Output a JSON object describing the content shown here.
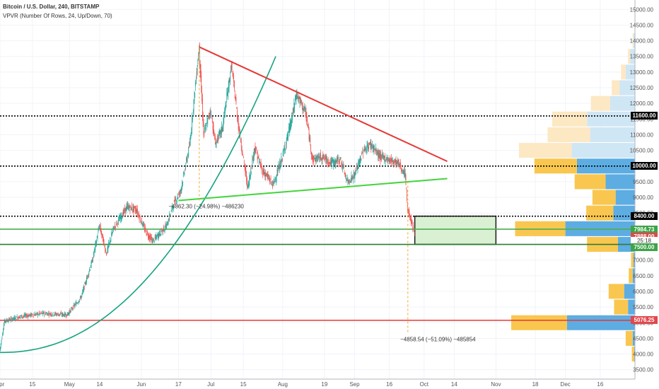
{
  "header": {
    "title": "Bitcoin / U.S. Dollar, 240, BITSTAMP",
    "indicator": "VPVR (Number Of Rows, 24, Up/Down, 70)"
  },
  "chart_data": {
    "type": "candlestick",
    "title": "Bitcoin / U.S. Dollar, 240, BITSTAMP",
    "indicator": "VPVR (Number Of Rows, 24, Up/Down, 70)",
    "ylim": [
      3200,
      15300
    ],
    "y_ticks": [
      3500,
      4000,
      4500,
      5000,
      5500,
      6000,
      6500,
      7000,
      7500,
      8000,
      8500,
      9000,
      9500,
      10000,
      10500,
      11000,
      11500,
      12000,
      12500,
      13000,
      13500,
      14000,
      14500,
      15000
    ],
    "x_range": [
      "2019-04-01",
      "2019-12-31"
    ],
    "x_ticks": [
      {
        "label": "Apr",
        "date": "2019-04-01"
      },
      {
        "label": "15",
        "date": "2019-04-15"
      },
      {
        "label": "May",
        "date": "2019-05-01"
      },
      {
        "label": "14",
        "date": "2019-05-14"
      },
      {
        "label": "Jun",
        "date": "2019-06-01"
      },
      {
        "label": "17",
        "date": "2019-06-17"
      },
      {
        "label": "Jul",
        "date": "2019-07-01"
      },
      {
        "label": "15",
        "date": "2019-07-15"
      },
      {
        "label": "Aug",
        "date": "2019-08-01"
      },
      {
        "label": "19",
        "date": "2019-08-19"
      },
      {
        "label": "Sep",
        "date": "2019-09-01"
      },
      {
        "label": "16",
        "date": "2019-09-16"
      },
      {
        "label": "Oct",
        "date": "2019-10-01"
      },
      {
        "label": "14",
        "date": "2019-10-14"
      },
      {
        "label": "Nov",
        "date": "2019-11-01"
      },
      {
        "label": "18",
        "date": "2019-11-18"
      },
      {
        "label": "Dec",
        "date": "2019-12-01"
      },
      {
        "label": "16",
        "date": "2019-12-16"
      }
    ],
    "price_path": [
      [
        "2019-04-01",
        4100
      ],
      [
        "2019-04-03",
        5050
      ],
      [
        "2019-04-10",
        5200
      ],
      [
        "2019-04-20",
        5300
      ],
      [
        "2019-04-30",
        5250
      ],
      [
        "2019-05-06",
        5800
      ],
      [
        "2019-05-11",
        7000
      ],
      [
        "2019-05-14",
        8100
      ],
      [
        "2019-05-17",
        7200
      ],
      [
        "2019-05-20",
        8000
      ],
      [
        "2019-05-26",
        8700
      ],
      [
        "2019-05-30",
        8600
      ],
      [
        "2019-06-03",
        7900
      ],
      [
        "2019-06-06",
        7600
      ],
      [
        "2019-06-12",
        8100
      ],
      [
        "2019-06-15",
        8800
      ],
      [
        "2019-06-18",
        9200
      ],
      [
        "2019-06-22",
        10700
      ],
      [
        "2019-06-26",
        13800
      ],
      [
        "2019-06-28",
        11000
      ],
      [
        "2019-07-01",
        11800
      ],
      [
        "2019-07-03",
        10700
      ],
      [
        "2019-07-06",
        11200
      ],
      [
        "2019-07-10",
        13200
      ],
      [
        "2019-07-13",
        11300
      ],
      [
        "2019-07-15",
        10300
      ],
      [
        "2019-07-17",
        9300
      ],
      [
        "2019-07-20",
        10600
      ],
      [
        "2019-07-23",
        9900
      ],
      [
        "2019-07-28",
        9400
      ],
      [
        "2019-08-01",
        10300
      ],
      [
        "2019-08-05",
        11500
      ],
      [
        "2019-08-07",
        12300
      ],
      [
        "2019-08-11",
        11700
      ],
      [
        "2019-08-14",
        10200
      ],
      [
        "2019-08-18",
        10300
      ],
      [
        "2019-08-22",
        10100
      ],
      [
        "2019-08-26",
        10200
      ],
      [
        "2019-08-29",
        9500
      ],
      [
        "2019-09-01",
        9700
      ],
      [
        "2019-09-05",
        10500
      ],
      [
        "2019-09-08",
        10700
      ],
      [
        "2019-09-12",
        10300
      ],
      [
        "2019-09-16",
        10200
      ],
      [
        "2019-09-20",
        10100
      ],
      [
        "2019-09-23",
        9700
      ],
      [
        "2019-09-24",
        8600
      ],
      [
        "2019-09-25",
        8400
      ],
      [
        "2019-09-26",
        8100
      ],
      [
        "2019-09-27",
        7800
      ]
    ],
    "volume_profile": [
      {
        "price": 4000,
        "up": 3,
        "down": 1
      },
      {
        "price": 4500,
        "up": 9,
        "down": 3
      },
      {
        "price": 5000,
        "up": 72,
        "down": 88
      },
      {
        "price": 5500,
        "up": 18,
        "down": 9
      },
      {
        "price": 6000,
        "up": 20,
        "down": 14
      },
      {
        "price": 6500,
        "up": 5,
        "down": 3
      },
      {
        "price": 7000,
        "up": 3,
        "down": 2
      },
      {
        "price": 7500,
        "up": 40,
        "down": 22
      },
      {
        "price": 8000,
        "up": 65,
        "down": 90
      },
      {
        "price": 8500,
        "up": 35,
        "down": 28
      },
      {
        "price": 9000,
        "up": 30,
        "down": 25
      },
      {
        "price": 9500,
        "up": 40,
        "down": 38
      },
      {
        "price": 10000,
        "up": 55,
        "down": 75
      },
      {
        "price": 10500,
        "up": 68,
        "down": 82
      },
      {
        "price": 11000,
        "up": 55,
        "down": 58
      },
      {
        "price": 11500,
        "up": 45,
        "down": 62
      },
      {
        "price": 12000,
        "up": 25,
        "down": 32
      },
      {
        "price": 12500,
        "up": 10,
        "down": 20
      },
      {
        "price": 13000,
        "up": 6,
        "down": 12
      },
      {
        "price": 13500,
        "up": 3,
        "down": 6
      },
      {
        "price": 14000,
        "up": 1,
        "down": 2
      }
    ],
    "horizontal_lines": [
      {
        "price": 11600,
        "style": "dotted",
        "color": "#000000"
      },
      {
        "price": 10000,
        "style": "dotted",
        "color": "#000000"
      },
      {
        "price": 8400,
        "style": "dotted",
        "color": "#000000"
      },
      {
        "price": 7984.73,
        "style": "solid",
        "color": "#4caf50"
      },
      {
        "price": 7500,
        "style": "solid",
        "color": "#2e7d32"
      },
      {
        "price": 5076.25,
        "style": "solid",
        "color": "#e53935"
      }
    ],
    "trendlines": [
      {
        "color": "#e53935",
        "from": [
          "2019-06-26",
          13800
        ],
        "to": [
          "2019-10-11",
          10150
        ]
      },
      {
        "color": "#43d43a",
        "from": [
          "2019-06-17",
          8900
        ],
        "to": [
          "2019-10-11",
          9600
        ]
      }
    ],
    "parabolic_curve": {
      "color": "#14a37f",
      "from": [
        "2019-04-01",
        4050
      ],
      "to": [
        "2019-07-29",
        13500
      ]
    },
    "measure_annotations": [
      {
        "text": "−4862.30 (−24.98%) −486230",
        "date": "2019-06-17",
        "price": 8900
      },
      {
        "text": "−4858.54 (−51.09%) −485854",
        "date": "2019-09-25",
        "price": 4660
      }
    ],
    "measure_lines": [
      {
        "date": "2019-06-26",
        "from": 8900,
        "to": 13800
      },
      {
        "date": "2019-09-24",
        "from": 4700,
        "to": 9500
      }
    ],
    "target_box": {
      "from": "2019-09-27",
      "to": "2019-11-01",
      "top": 8400,
      "bottom": 7500
    },
    "price_labels": [
      {
        "text": "11600.00",
        "price": 11600,
        "style": "dark"
      },
      {
        "text": "10000.00",
        "price": 10000,
        "style": "dark"
      },
      {
        "text": "8400.00",
        "price": 8400,
        "style": "dark"
      },
      {
        "text": "7984.73",
        "price": 7984.73,
        "style": "green"
      },
      {
        "text": "7888.00",
        "price": 7740,
        "style": "red"
      },
      {
        "text": "25:18",
        "price": 7620,
        "style": "white"
      },
      {
        "text": "7500.00",
        "price": 7420,
        "style": "green"
      },
      {
        "text": "5076.25",
        "price": 5076.25,
        "style": "red"
      }
    ],
    "colors": {
      "bull": "#26a69a",
      "bear": "#ef5350",
      "vp_up": "#f9c74f",
      "vp_down": "#5dade2",
      "vp_up_faded": "#fde8c4",
      "vp_down_faded": "#cfe6f5",
      "box_fill": "#d9f0d3"
    }
  }
}
